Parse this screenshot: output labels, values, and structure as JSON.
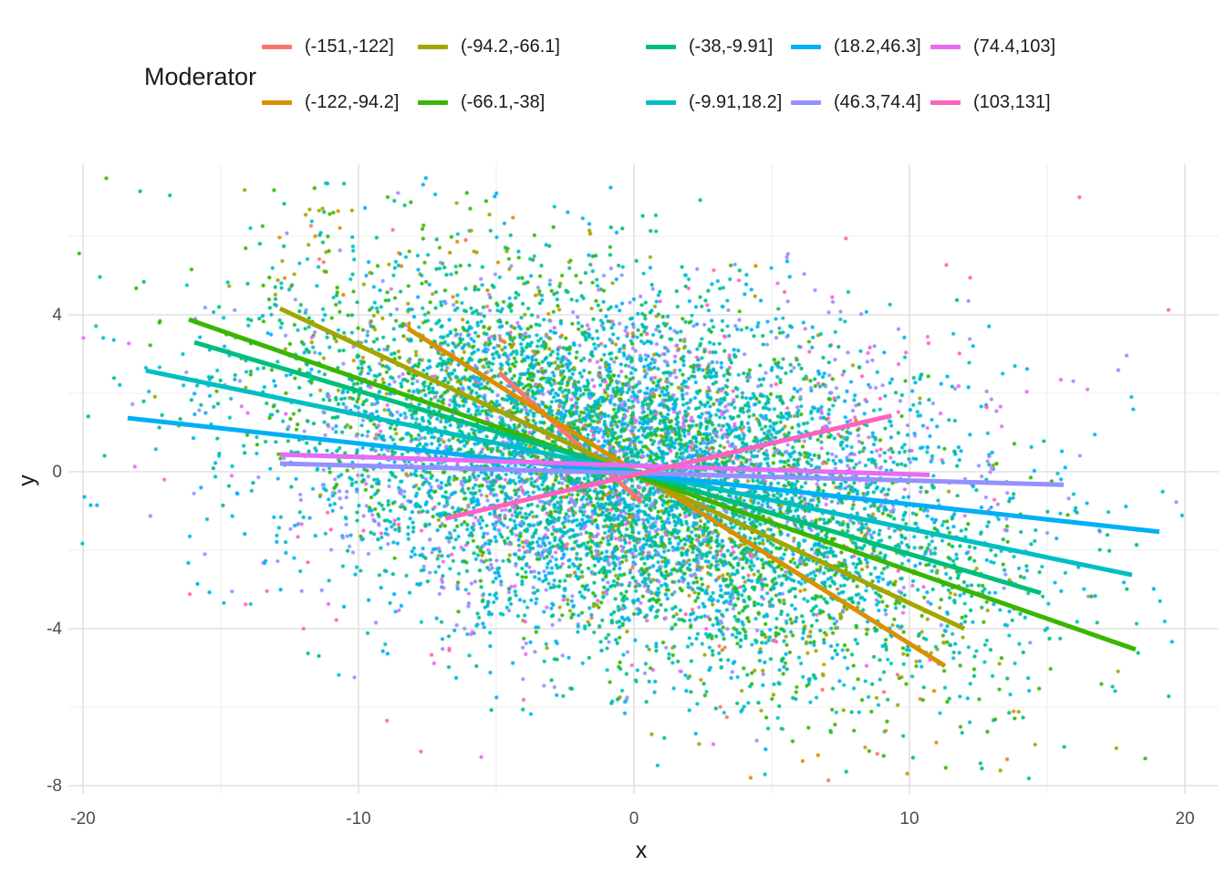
{
  "chart_data": {
    "type": "scatter",
    "title": "",
    "legend_title": "Moderator",
    "legend_position": "top",
    "xlabel": "x",
    "ylabel": "y",
    "xlim": [
      -20.5,
      21.2
    ],
    "ylim": [
      -8.2,
      7.84
    ],
    "grid": "on",
    "x_major_ticks": [
      -20,
      -10,
      0,
      10,
      20
    ],
    "x_major_tick_labels": [
      "-20",
      "-10",
      "0",
      "10",
      "20"
    ],
    "x_minor_ticks": [
      -15,
      -5,
      5,
      15
    ],
    "y_major_ticks": [
      -8,
      -4,
      0,
      4
    ],
    "y_major_tick_labels": [
      "-8",
      "-4",
      "0",
      "4"
    ],
    "y_minor_ticks": [
      -6,
      -2,
      2,
      6
    ],
    "colors": {
      "background": "#ffffff",
      "grid_major": "#e2e2e2",
      "grid_minor": "#ededed",
      "tick_text": "#4d4d4d",
      "axis_title_text": "#1a1a1a"
    },
    "series": [
      {
        "label": "(-151,-122]",
        "color": "#F8766D",
        "line": {
          "x1": -4.9,
          "y1": 2.53,
          "x2": 0.26,
          "y2": -0.77
        },
        "point_share": 0.005
      },
      {
        "label": "(-122,-94.2]",
        "color": "#D89000",
        "line": {
          "x1": -8.21,
          "y1": 3.65,
          "x2": 11.29,
          "y2": -4.95
        },
        "point_share": 0.012
      },
      {
        "label": "(-94.2,-66.1]",
        "color": "#A3A500",
        "line": {
          "x1": -12.85,
          "y1": 4.16,
          "x2": 11.99,
          "y2": -4.0
        },
        "point_share": 0.05
      },
      {
        "label": "(-66.1,-38]",
        "color": "#39B600",
        "line": {
          "x1": -16.16,
          "y1": 3.88,
          "x2": 18.21,
          "y2": -4.53
        },
        "point_share": 0.13
      },
      {
        "label": "(-38,-9.91]",
        "color": "#00BF7D",
        "line": {
          "x1": -15.96,
          "y1": 3.3,
          "x2": 14.77,
          "y2": -3.09
        },
        "point_share": 0.21
      },
      {
        "label": "(-9.91,18.2]",
        "color": "#00BFC4",
        "line": {
          "x1": -17.72,
          "y1": 2.58,
          "x2": 18.08,
          "y2": -2.63
        },
        "point_share": 0.25
      },
      {
        "label": "(18.2,46.3]",
        "color": "#00B0F6",
        "line": {
          "x1": -18.38,
          "y1": 1.37,
          "x2": 19.07,
          "y2": -1.53
        },
        "point_share": 0.19
      },
      {
        "label": "(46.3,74.4]",
        "color": "#9590FF",
        "line": {
          "x1": -12.85,
          "y1": 0.21,
          "x2": 15.6,
          "y2": -0.33
        },
        "point_share": 0.1
      },
      {
        "label": "(74.4,103]",
        "color": "#E76BF3",
        "line": {
          "x1": -12.85,
          "y1": 0.44,
          "x2": 10.73,
          "y2": -0.08
        },
        "point_share": 0.035
      },
      {
        "label": "(103,131]",
        "color": "#FF62BC",
        "line": {
          "x1": -6.85,
          "y1": -1.19,
          "x2": 9.35,
          "y2": 1.43
        },
        "point_share": 0.018
      }
    ],
    "scatter_cloud": {
      "n": 9000,
      "x_mean": 0,
      "x_sd": 6.3,
      "residual_sd": 2.2,
      "point_radius": 2.1,
      "seed": 7,
      "note": "points drawn per series around that series' regression line"
    }
  }
}
